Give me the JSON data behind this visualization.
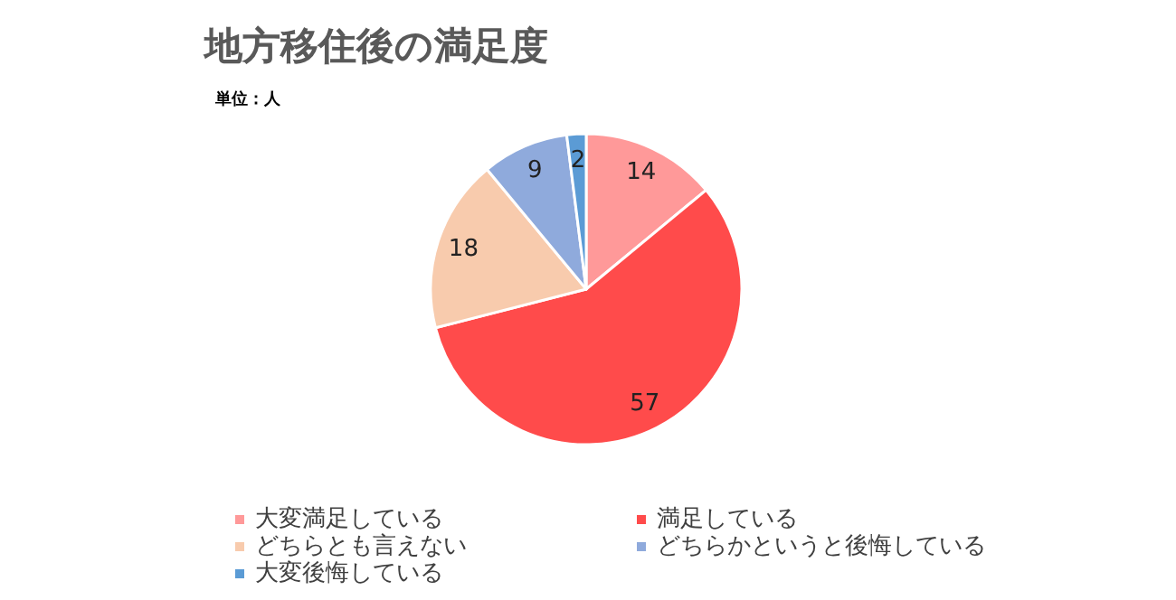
{
  "chart_data": {
    "type": "pie",
    "title": "地方移住後の満足度",
    "subtitle": "単位：人",
    "categories": [
      "大変満足している",
      "満足している",
      "どちらとも言えない",
      "どちらかというと後悔している",
      "大変後悔している"
    ],
    "values": [
      14,
      57,
      18,
      9,
      2
    ],
    "colors": [
      "#ff9999",
      "#ff4b4b",
      "#f8cbad",
      "#8faadc",
      "#5b9bd5"
    ],
    "data_labels": true,
    "legend": "bottom"
  }
}
